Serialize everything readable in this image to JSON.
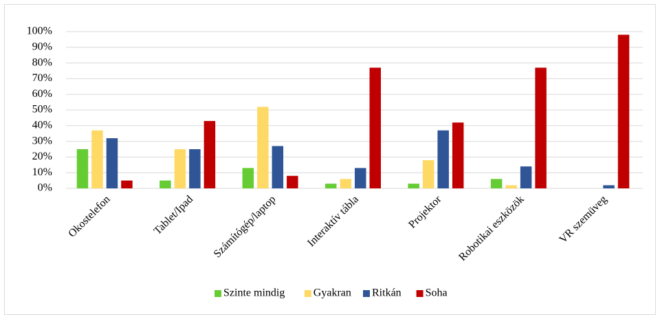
{
  "chart_data": {
    "type": "bar",
    "categories": [
      "Okostelefon",
      "Tablet/Ipad",
      "Számítógép/laptop",
      "Interaktív tábla",
      "Projektor",
      "Robotikai eszközök",
      "VR szemüveg"
    ],
    "series": [
      {
        "name": "Szinte mindig",
        "color": "#66cc33",
        "values": [
          25,
          5,
          13,
          3,
          3,
          6,
          0
        ]
      },
      {
        "name": "Gyakran",
        "color": "#ffd966",
        "values": [
          37,
          25,
          52,
          6,
          18,
          2,
          0
        ]
      },
      {
        "name": "Ritkán",
        "color": "#2f5597",
        "values": [
          32,
          25,
          27,
          13,
          37,
          14,
          2
        ]
      },
      {
        "name": "Soha",
        "color": "#c00000",
        "values": [
          5,
          43,
          8,
          77,
          42,
          77,
          98
        ]
      }
    ],
    "ylim": [
      0,
      100
    ],
    "yticks": [
      {
        "value": 0,
        "label": "0%"
      },
      {
        "value": 10,
        "label": "10%"
      },
      {
        "value": 20,
        "label": "20%"
      },
      {
        "value": 30,
        "label": "30%"
      },
      {
        "value": 40,
        "label": "40%"
      },
      {
        "value": 50,
        "label": "50%"
      },
      {
        "value": 60,
        "label": "60%"
      },
      {
        "value": 70,
        "label": "70%"
      },
      {
        "value": 80,
        "label": "80%"
      },
      {
        "value": 90,
        "label": "90%"
      },
      {
        "value": 100,
        "label": "100%"
      }
    ],
    "grid": true,
    "legend": "bottom"
  }
}
